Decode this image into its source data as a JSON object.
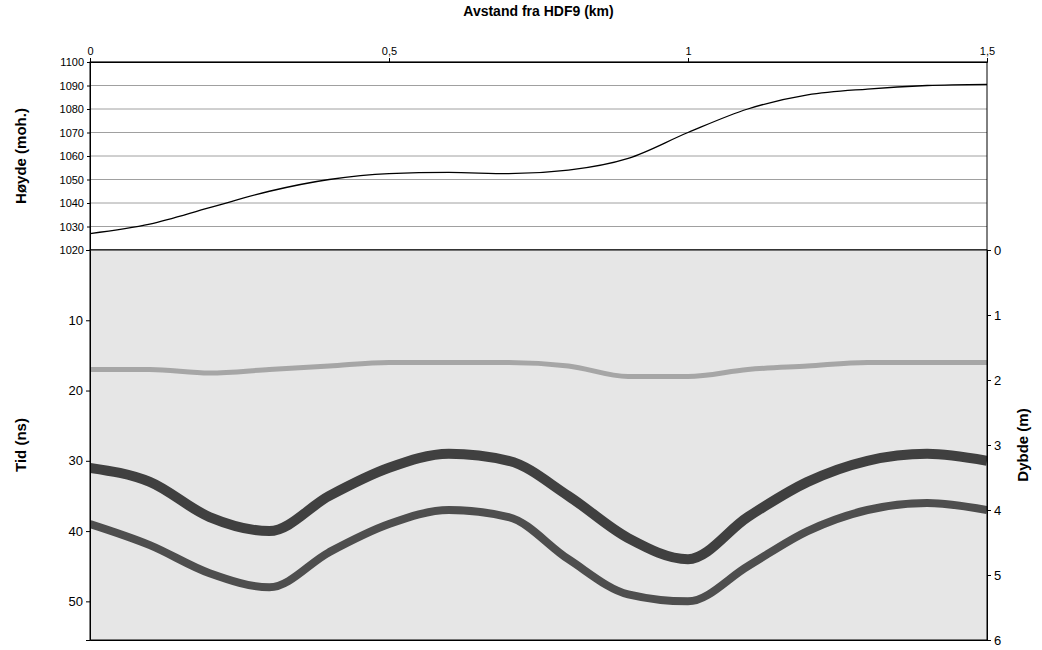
{
  "chart_data": [
    {
      "type": "line",
      "xlabel": "Avstand fra HDF9 (km)",
      "ylabel": "Høyde (moh.)",
      "x": [
        0,
        0.1,
        0.2,
        0.3,
        0.4,
        0.5,
        0.6,
        0.7,
        0.8,
        0.9,
        1.0,
        1.1,
        1.2,
        1.3,
        1.4,
        1.5
      ],
      "values": [
        1027,
        1031,
        1038,
        1045,
        1050,
        1052.5,
        1053,
        1052.5,
        1054,
        1059,
        1070,
        1080,
        1086,
        1088.5,
        1090,
        1090.5
      ],
      "color": "#000000",
      "xlim": [
        0,
        1.5
      ],
      "xticks": [
        0,
        {
          "value": 0.5,
          "label": "0,5"
        },
        1,
        {
          "value": 1.5,
          "label": "1,5"
        }
      ],
      "ylim": [
        1020,
        1100
      ],
      "yticks": [
        1020,
        1030,
        1040,
        1050,
        1060,
        1070,
        1080,
        1090,
        1100
      ],
      "grid": true
    },
    {
      "type": "line",
      "ylabel": "Tid (ns)",
      "y2label": "Dybde (m)",
      "x": [
        0,
        0.1,
        0.2,
        0.3,
        0.4,
        0.5,
        0.6,
        0.7,
        0.8,
        0.9,
        1.0,
        1.1,
        1.2,
        1.3,
        1.4,
        1.5
      ],
      "series": [
        {
          "color": "#9a9a9a",
          "values": [
            17,
            17,
            17.5,
            17,
            16.5,
            16,
            16,
            16,
            16.5,
            18,
            18,
            17,
            16.5,
            16,
            16,
            16
          ]
        },
        {
          "color": "#222222",
          "values": [
            31,
            33,
            38,
            40,
            35,
            31,
            29,
            30,
            35,
            41,
            44,
            38,
            33,
            30,
            29,
            30
          ]
        },
        {
          "color": "#333333",
          "values": [
            39,
            42,
            46,
            48,
            43,
            39,
            37,
            38,
            44,
            49,
            50,
            45,
            40,
            37,
            36,
            37
          ]
        }
      ],
      "xlim": [
        0,
        1.5
      ],
      "ylim": [
        0,
        55.5
      ],
      "yticks": [
        10,
        20,
        30,
        40,
        50
      ],
      "y2lim": [
        0,
        6
      ],
      "y2ticks": [
        0,
        1,
        2,
        3,
        4,
        5,
        6
      ]
    }
  ]
}
